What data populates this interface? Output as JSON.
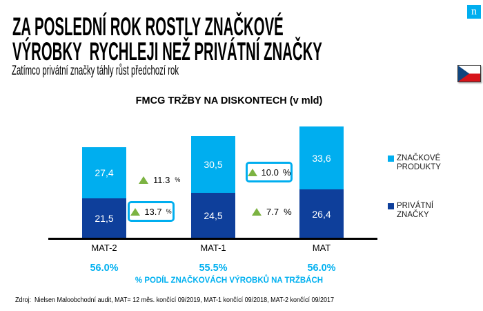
{
  "slide": {
    "title_line1": "ZA POSLEDNÍ ROK ROSTLY ZNAČKOVÉ",
    "title_line2": "VÝROBKY  RYCHLEJI NEŽ PRIVÁTNÍ ZNAČKY",
    "subtitle": "Zatímco privátní značky táhly růst předchozí rok",
    "logo_letter": "n",
    "source": "Zdroj:  Nielsen Maloobchodní audit, MAT= 12 měs. končící 09/2019, MAT-1 končící 09/2018, MAT-2 končící 09/2017"
  },
  "colors": {
    "accent_light_blue": "#00AEEF",
    "accent_cyan_text": "#00B0F0",
    "accent_dark_blue": "#0E3F9B",
    "growth_green": "#7CB342",
    "logo_blue": "#00AEEF",
    "flag_blue": "#11457E",
    "flag_red": "#D7141A"
  },
  "chart_data": {
    "type": "bar",
    "stacked": true,
    "title": "FMCG TRŽBY NA DISKONTECH (v mld)",
    "categories": [
      "MAT-2",
      "MAT-1",
      "MAT"
    ],
    "series": [
      {
        "name": "PRIVÁTNÍ ZNAČKY",
        "color": "#0E3F9B",
        "values": [
          21.5,
          24.5,
          26.4
        ],
        "labels": [
          "21,5",
          "24,5",
          "26,4"
        ]
      },
      {
        "name": "ZNAČKOVÉ PRODUKTY",
        "color": "#00AEEF",
        "values": [
          27.4,
          30.5,
          33.6
        ],
        "labels": [
          "27,4",
          "30,5",
          "33,6"
        ]
      }
    ],
    "growth_annotations": [
      {
        "between": "MAT-2 to MAT-1",
        "series": "ZNAČKOVÉ PRODUKTY",
        "value": "11.3",
        "pct": "%",
        "highlighted": false
      },
      {
        "between": "MAT-2 to MAT-1",
        "series": "PRIVÁTNÍ ZNAČKY",
        "value": "13.7",
        "pct": "%",
        "highlighted": true
      },
      {
        "between": "MAT-1 to MAT",
        "series": "ZNAČKOVÉ PRODUKTY",
        "value": "10.0",
        "pct": "%",
        "highlighted": true
      },
      {
        "between": "MAT-1 to MAT",
        "series": "PRIVÁTNÍ ZNAČKY",
        "value": "7.7",
        "pct": "%",
        "highlighted": false
      }
    ],
    "legend": [
      {
        "label_line1": "ZNAČKOVÉ",
        "label_line2": "PRODUKTY",
        "series_index": 1
      },
      {
        "label_line1": "PRIVÁTNÍ",
        "label_line2": "ZNAČKY",
        "series_index": 0
      }
    ],
    "share_row": {
      "values": [
        "56.0%",
        "55.5%",
        "56.0%"
      ],
      "label": "% PODÍL ZNAČKOVÁCH VÝROBKŮ NA TRŽBÁCH"
    },
    "layout_hints": {
      "legend_position": "right",
      "gridlines": false,
      "value_axis_visible": false,
      "baseline_axis": true
    }
  }
}
